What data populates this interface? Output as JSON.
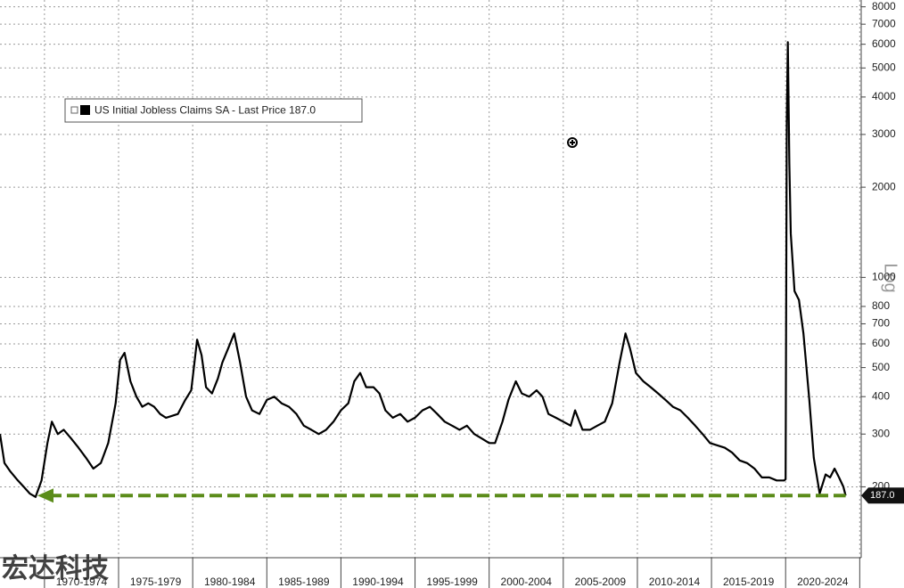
{
  "chart_data": {
    "type": "line",
    "log_scale": true,
    "grid": true,
    "scale_label": "Log",
    "watermark": "宏达科技",
    "xlim": [
      1967,
      2025.1
    ],
    "xticks": [
      1970,
      1975,
      1980,
      1985,
      1990,
      1995,
      2000,
      2005,
      2010,
      2015,
      2020,
      2025
    ],
    "period_labels": [
      "1970-1974",
      "1975-1979",
      "1980-1984",
      "1985-1989",
      "1990-1994",
      "1995-1999",
      "2000-2004",
      "2005-2009",
      "2010-2014",
      "2015-2019",
      "2020-2024"
    ],
    "ylim": [
      116,
      8430
    ],
    "yticks": [
      200,
      300,
      400,
      500,
      600,
      700,
      800,
      1000,
      2000,
      3000,
      4000,
      5000,
      6000,
      7000,
      8000
    ],
    "last_value": {
      "value": 187,
      "label": "187.0"
    },
    "arrow_color": "#5b8c1a",
    "x": [
      1967.0,
      1967.3,
      1967.7,
      1968.2,
      1968.6,
      1969.0,
      1969.4,
      1969.8,
      1970.2,
      1970.5,
      1970.9,
      1971.3,
      1971.8,
      1972.3,
      1972.8,
      1973.3,
      1973.8,
      1974.3,
      1974.8,
      1975.1,
      1975.4,
      1975.8,
      1976.2,
      1976.6,
      1977.0,
      1977.4,
      1977.8,
      1978.2,
      1978.6,
      1979.0,
      1979.5,
      1979.9,
      1980.3,
      1980.6,
      1980.9,
      1981.3,
      1981.7,
      1982.0,
      1982.4,
      1982.8,
      1983.2,
      1983.6,
      1984.0,
      1984.5,
      1985.0,
      1985.5,
      1986.0,
      1986.5,
      1987.0,
      1987.5,
      1988.0,
      1988.5,
      1989.0,
      1989.5,
      1990.0,
      1990.5,
      1990.9,
      1991.3,
      1991.7,
      1992.2,
      1992.6,
      1993.0,
      1993.5,
      1994.0,
      1994.5,
      1995.0,
      1995.5,
      1996.0,
      1996.5,
      1997.0,
      1997.5,
      1998.0,
      1998.5,
      1999.0,
      1999.5,
      2000.0,
      2000.4,
      2000.9,
      2001.3,
      2001.8,
      2002.2,
      2002.7,
      2003.2,
      2003.6,
      2004.0,
      2004.5,
      2005.0,
      2005.5,
      2005.8,
      2006.3,
      2006.8,
      2007.3,
      2007.8,
      2008.3,
      2008.8,
      2009.2,
      2009.5,
      2009.9,
      2010.4,
      2010.9,
      2011.4,
      2011.9,
      2012.4,
      2012.9,
      2013.4,
      2013.9,
      2014.4,
      2014.9,
      2015.4,
      2015.9,
      2016.4,
      2016.9,
      2017.4,
      2017.9,
      2018.4,
      2018.9,
      2019.4,
      2019.9,
      2020.0,
      2020.08,
      2020.15,
      2020.25,
      2020.35,
      2020.6,
      2020.9,
      2021.2,
      2021.6,
      2021.9,
      2022.3,
      2022.7,
      2023.0,
      2023.3,
      2023.6,
      2023.9,
      2024.05
    ],
    "series": [
      {
        "name": "US Initial Jobless Claims SA - Last Price 187.0",
        "color": "#000000",
        "values": [
          300,
          240,
          225,
          210,
          200,
          190,
          185,
          210,
          280,
          330,
          300,
          310,
          290,
          270,
          250,
          230,
          240,
          280,
          380,
          530,
          560,
          450,
          400,
          370,
          380,
          370,
          350,
          340,
          345,
          350,
          390,
          420,
          620,
          550,
          430,
          410,
          460,
          520,
          580,
          650,
          520,
          400,
          360,
          350,
          390,
          400,
          380,
          370,
          350,
          320,
          310,
          300,
          310,
          330,
          360,
          380,
          450,
          480,
          430,
          430,
          410,
          360,
          340,
          350,
          330,
          340,
          360,
          370,
          350,
          330,
          320,
          310,
          320,
          300,
          290,
          280,
          280,
          330,
          390,
          450,
          410,
          400,
          420,
          400,
          350,
          340,
          330,
          320,
          360,
          310,
          310,
          320,
          330,
          380,
          520,
          650,
          580,
          480,
          450,
          430,
          410,
          390,
          370,
          360,
          340,
          320,
          300,
          280,
          275,
          270,
          260,
          245,
          240,
          230,
          215,
          215,
          210,
          210,
          212,
          3300,
          6100,
          2400,
          1400,
          900,
          840,
          650,
          390,
          250,
          190,
          220,
          215,
          230,
          215,
          200,
          187
        ]
      }
    ]
  }
}
